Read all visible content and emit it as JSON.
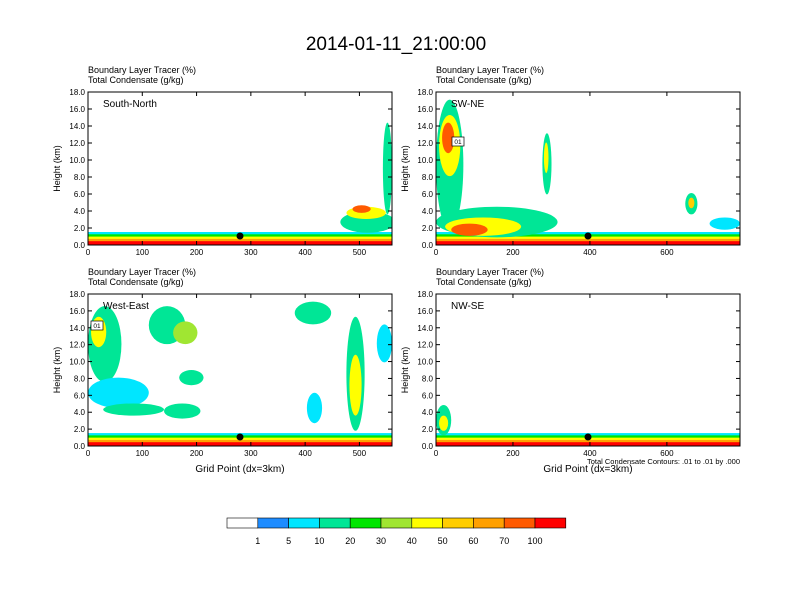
{
  "title": "2014-01-11_21:00:00",
  "chart_data": [
    {
      "type": "heatmap",
      "name": "South-North",
      "subtitle_1": "Boundary Layer Tracer   (%)",
      "subtitle_2": "Total Condensate   (g/kg)",
      "ylabel": "Height (km)",
      "xlabel": "",
      "ylim": [
        0,
        18
      ],
      "xlim": [
        0,
        560
      ],
      "yticks": [
        "0.0",
        "2.0",
        "4.0",
        "6.0",
        "8.0",
        "10.0",
        "12.0",
        "14.0",
        "16.0",
        "18.0"
      ],
      "xticks": [
        {
          "v": 0,
          "l": "0"
        },
        {
          "v": 100,
          "l": "100"
        },
        {
          "v": 200,
          "l": "200"
        },
        {
          "v": 300,
          "l": "300"
        },
        {
          "v": 400,
          "l": "400"
        },
        {
          "v": 500,
          "l": "500"
        }
      ],
      "marker_x": 280
    },
    {
      "type": "heatmap",
      "name": "SW-NE",
      "subtitle_1": "Boundary Layer Tracer   (%)",
      "subtitle_2": "Total Condensate   (g/kg)",
      "ylabel": "Height (km)",
      "xlabel": "",
      "ylim": [
        0,
        18
      ],
      "xlim": [
        0,
        790
      ],
      "yticks": [
        "0.0",
        "2.0",
        "4.0",
        "6.0",
        "8.0",
        "10.0",
        "12.0",
        "14.0",
        "16.0",
        "18.0"
      ],
      "xticks": [
        {
          "v": 0,
          "l": "0"
        },
        {
          "v": 200,
          "l": "200"
        },
        {
          "v": 400,
          "l": "400"
        },
        {
          "v": 600,
          "l": "600"
        }
      ],
      "marker_x": 395,
      "contour_label": "01"
    },
    {
      "type": "heatmap",
      "name": "West-East",
      "subtitle_1": "Boundary Layer Tracer   (%)",
      "subtitle_2": "Total Condensate   (g/kg)",
      "ylabel": "Height (km)",
      "xlabel": "Grid Point (dx=3km)",
      "ylim": [
        0,
        18
      ],
      "xlim": [
        0,
        560
      ],
      "yticks": [
        "0.0",
        "2.0",
        "4.0",
        "6.0",
        "8.0",
        "10.0",
        "12.0",
        "14.0",
        "16.0",
        "18.0"
      ],
      "xticks": [
        {
          "v": 0,
          "l": "0"
        },
        {
          "v": 100,
          "l": "100"
        },
        {
          "v": 200,
          "l": "200"
        },
        {
          "v": 300,
          "l": "300"
        },
        {
          "v": 400,
          "l": "400"
        },
        {
          "v": 500,
          "l": "500"
        }
      ],
      "marker_x": 280,
      "contour_label": "01"
    },
    {
      "type": "heatmap",
      "name": "NW-SE",
      "subtitle_1": "Boundary Layer Tracer   (%)",
      "subtitle_2": "Total Condensate   (g/kg)",
      "ylabel": "Height (km)",
      "xlabel": "Grid Point (dx=3km)",
      "ylim": [
        0,
        18
      ],
      "xlim": [
        0,
        790
      ],
      "yticks": [
        "0.0",
        "2.0",
        "4.0",
        "6.0",
        "8.0",
        "10.0",
        "12.0",
        "14.0",
        "16.0",
        "18.0"
      ],
      "xticks": [
        {
          "v": 0,
          "l": "0"
        },
        {
          "v": 200,
          "l": "200"
        },
        {
          "v": 400,
          "l": "400"
        },
        {
          "v": 600,
          "l": "600"
        }
      ],
      "marker_x": 395,
      "footnote": "Total Condensate Contours: .01 to .01 by .000"
    }
  ],
  "legend": {
    "colors": [
      "#ffffff",
      "#1e8cff",
      "#00e6ff",
      "#00e696",
      "#00e600",
      "#a0e632",
      "#ffff00",
      "#ffcd00",
      "#ffa000",
      "#ff5a00",
      "#ff0000"
    ],
    "labels": [
      "1",
      "5",
      "10",
      "20",
      "30",
      "40",
      "50",
      "60",
      "70",
      "100"
    ]
  }
}
